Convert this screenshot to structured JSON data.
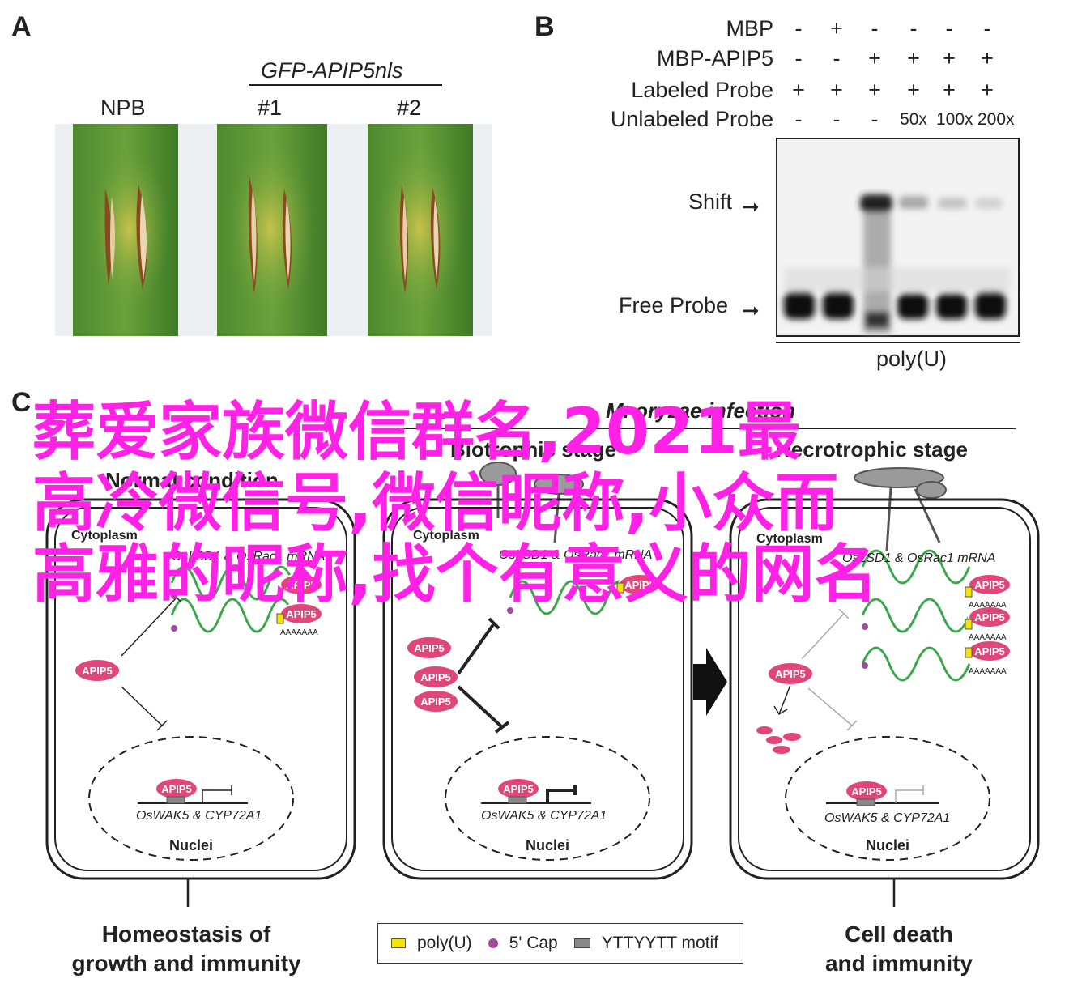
{
  "panelA": {
    "label": "A",
    "construct": "GFP-APIP5nls",
    "samples": [
      "NPB",
      "#1",
      "#2"
    ]
  },
  "panelB": {
    "label": "B",
    "rows": [
      {
        "name": "MBP",
        "signs": [
          "-",
          "+",
          "-",
          "-",
          "-",
          "-"
        ]
      },
      {
        "name": "MBP-APIP5",
        "signs": [
          "-",
          "-",
          "+",
          "+",
          "+",
          "+"
        ]
      },
      {
        "name": "Labeled Probe",
        "signs": [
          "+",
          "+",
          "+",
          "+",
          "+",
          "+"
        ]
      },
      {
        "name": "Unlabeled Probe",
        "signs": [
          "-",
          "-",
          "-",
          "50x",
          "100x",
          "200x"
        ]
      }
    ],
    "shift": "Shift",
    "free_probe": "Free Probe",
    "probe": "poly(U)"
  },
  "panelC": {
    "label": "C",
    "title": "M. oryzae infection",
    "stage1": "Biotrophic stage",
    "stage2": "Necrotrophic stage",
    "normal": "Normal condition",
    "cytoplasm": "Cytoplasm",
    "mrna_left": "OsLSD1 & OsRac1 mRNA",
    "mrna": "OsLSD1 & OsRac1 mRNA",
    "protein": "APIP5",
    "polya": "AAAAAAA",
    "genes": "OsWAK5 & CYP72A1",
    "nuclei": "Nuclei",
    "outcome_left_1": "Homeostasis of",
    "outcome_left_2": "growth and immunity",
    "outcome_right_1": "Cell death",
    "outcome_right_2": "and immunity",
    "legend": [
      "poly(U)",
      "5' Cap",
      "YTTYYTT motif"
    ]
  },
  "overlay": {
    "line1": "葬爱家族微信群名,2021最",
    "line2": "高冷微信号,微信昵称,小众而",
    "line3": "高雅的昵称,找个有意义的网名"
  },
  "colors": {
    "protein": "#e0467a",
    "mrna": "#3aa84a",
    "cap": "#a04c9c",
    "polyu": "#f4e400",
    "overlay": "#ff22e6"
  }
}
